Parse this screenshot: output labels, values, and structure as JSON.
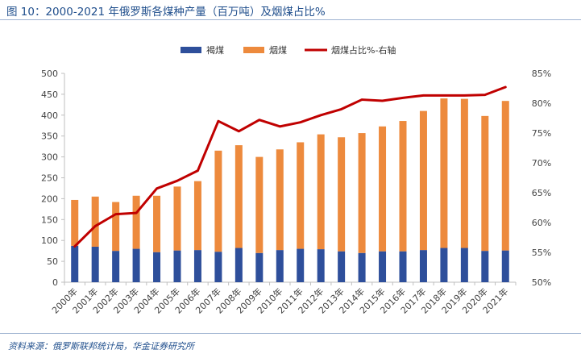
{
  "header": {
    "title": "图 10：2000-2021 年俄罗斯各煤种产量（百万吨）及烟煤占比%"
  },
  "footer": {
    "source": "资料来源：俄罗斯联邦统计局，华金证券研究所"
  },
  "colors": {
    "lignite": "#2e4f9b",
    "bituminous": "#ed8a3d",
    "share_line": "#c00000"
  },
  "chart_data": {
    "type": "bar",
    "stacked": true,
    "categories": [
      "2000年",
      "2001年",
      "2002年",
      "2003年",
      "2004年",
      "2005年",
      "2006年",
      "2007年",
      "2008年",
      "2009年",
      "2010年",
      "2011年",
      "2012年",
      "2013年",
      "2014年",
      "2015年",
      "2016年",
      "2017年",
      "2018年",
      "2019年",
      "2020年",
      "2021年"
    ],
    "series": [
      {
        "name": "褐煤",
        "type": "bar",
        "axis": "left",
        "values": [
          87,
          85,
          75,
          80,
          72,
          76,
          77,
          73,
          82,
          70,
          77,
          80,
          79,
          74,
          70,
          74,
          74,
          77,
          82,
          82,
          75,
          76
        ]
      },
      {
        "name": "烟煤",
        "type": "bar",
        "axis": "left",
        "values": [
          110,
          120,
          117,
          127,
          135,
          153,
          165,
          242,
          246,
          230,
          241,
          255,
          275,
          273,
          287,
          299,
          312,
          333,
          358,
          357,
          323,
          358
        ]
      },
      {
        "name": "烟煤占比%-右轴",
        "type": "line",
        "axis": "right",
        "values": [
          56.0,
          59.4,
          61.4,
          61.6,
          65.7,
          67.0,
          68.7,
          77.0,
          75.3,
          77.2,
          76.1,
          76.8,
          78.0,
          79.0,
          80.6,
          80.4,
          80.9,
          81.3,
          81.3,
          81.3,
          81.4,
          82.7
        ]
      }
    ],
    "y_left": {
      "ylim": [
        0,
        500
      ],
      "ticks": [
        "0",
        "50",
        "100",
        "150",
        "200",
        "250",
        "300",
        "350",
        "400",
        "450",
        "500"
      ]
    },
    "y_right": {
      "ylim": [
        50,
        85
      ],
      "ticks": [
        "50%",
        "55%",
        "60%",
        "65%",
        "70%",
        "75%",
        "80%",
        "85%"
      ]
    },
    "grid": false,
    "legend_position": "top"
  }
}
